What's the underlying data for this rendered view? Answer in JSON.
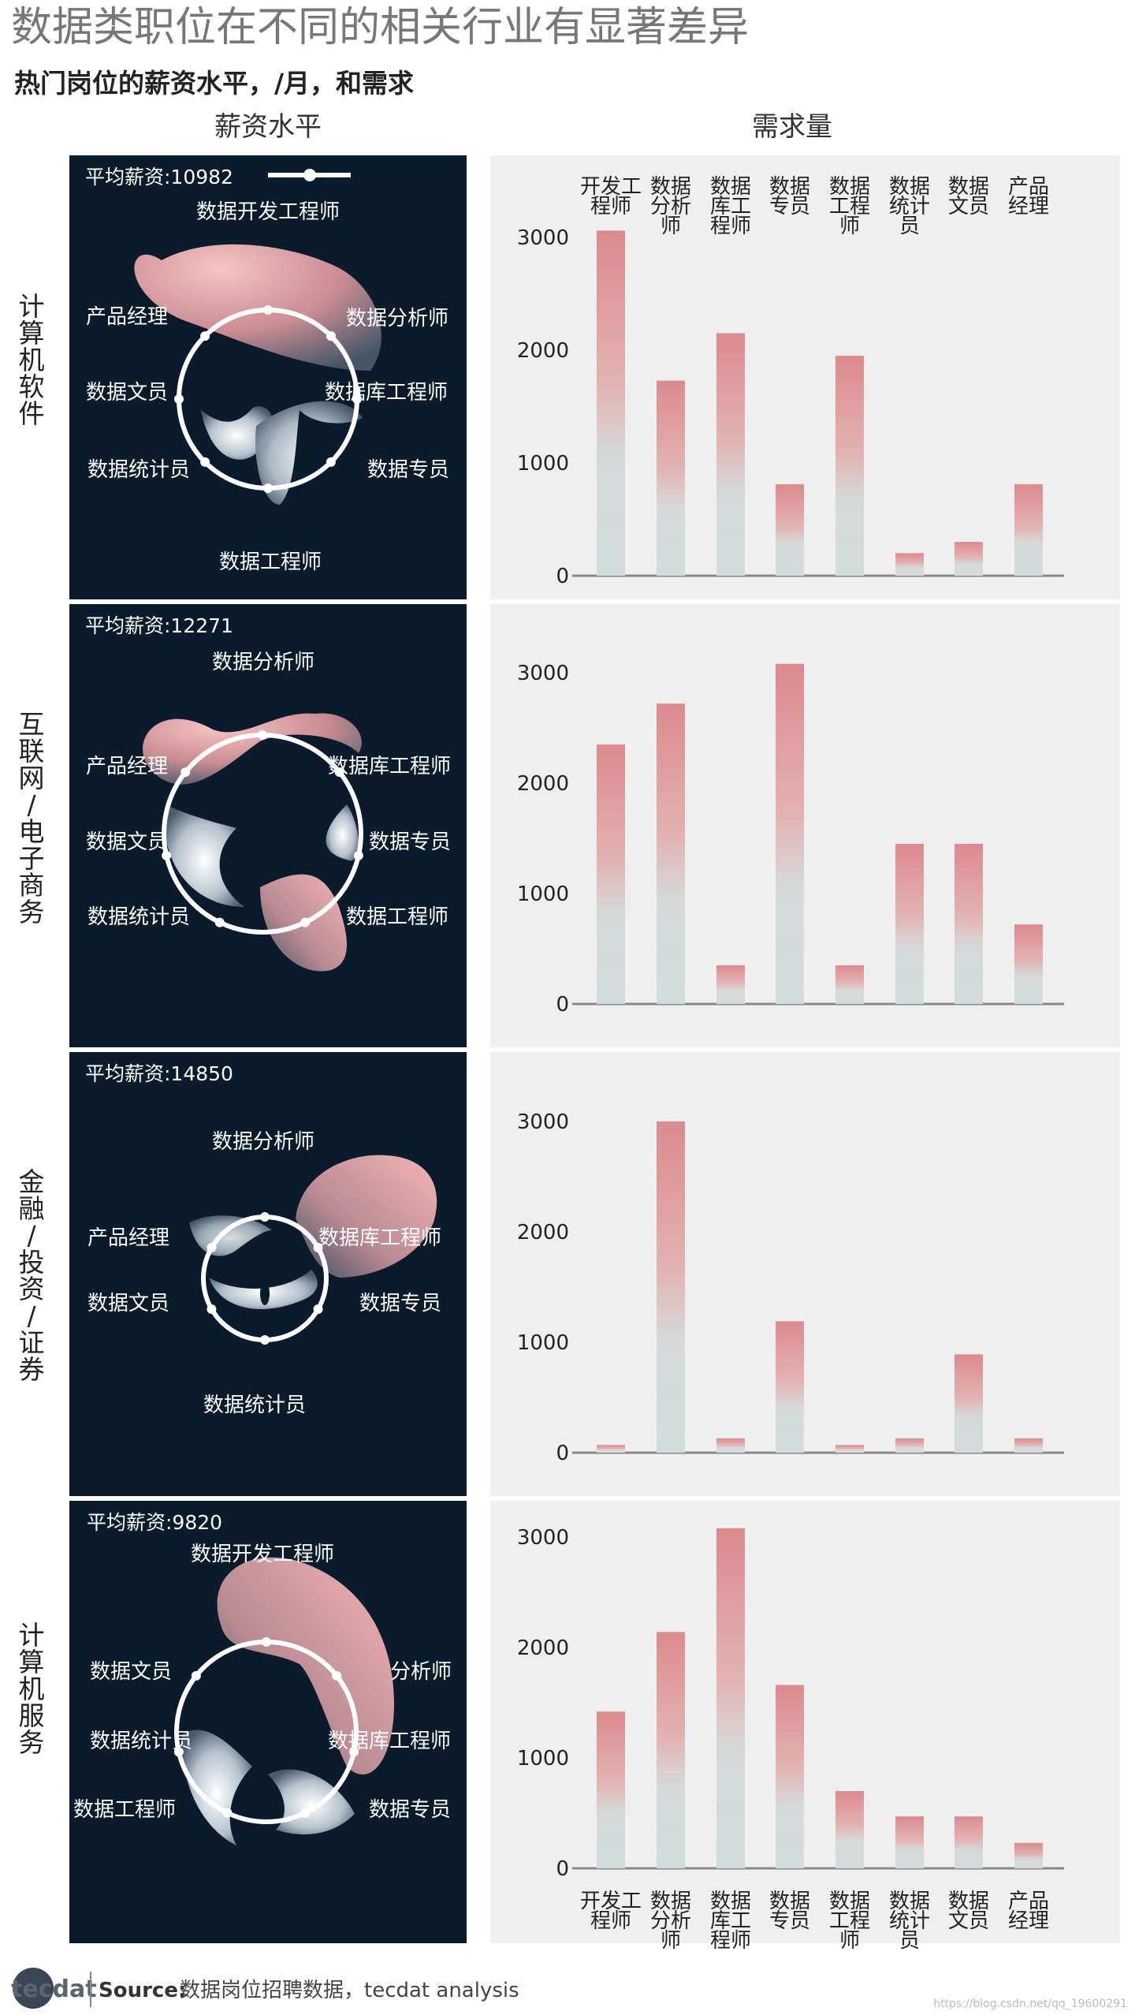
{
  "title": "数据类职位在不同的相关行业有显著差异",
  "subtitle": "热门岗位的薪资水平，/月，和需求",
  "col_headers": {
    "salary": "薪资水平",
    "demand": "需求量"
  },
  "legend_avg_label": "平均薪资",
  "footer": {
    "logo": "tecdat",
    "source_label": "Source:",
    "source_text": "数据岗位招聘数据，tecdat analysis",
    "watermark": "https://blog.csdn.net/qq_19600291"
  },
  "colors": {
    "panel_dark": "#0b1b2b",
    "panel_light": "#efefef",
    "bar_top": "#dc8a8d",
    "bar_bottom": "#d3dcdc",
    "blob_pink": "#f2b2b4",
    "axis": "#888888"
  },
  "chart_data": [
    {
      "industry": "计算机软件",
      "radar": {
        "type": "radar",
        "avg_salary_label": "平均薪资:10982",
        "labels": [
          "数据开发工程师",
          "数据分析师",
          "数据库工程师",
          "数据专员",
          "数据工程师",
          "数据统计员",
          "数据文员",
          "产品经理"
        ]
      },
      "bar": {
        "type": "bar",
        "categories": [
          "开发工程师",
          "数据分析师",
          "数据库工程师",
          "数据专员",
          "数据工程师",
          "数据统计员",
          "数据文员",
          "产品经理"
        ],
        "category_labels": [
          "开发工\n程师",
          "数据\n分析\n师",
          "数据\n库工\n程师",
          "数据\n专员",
          "数据\n工程\n师",
          "数据\n统计\n员",
          "数据\n文员",
          "产品\n经理"
        ],
        "values": [
          3060,
          1730,
          2150,
          810,
          1950,
          200,
          300,
          810
        ],
        "yticks": [
          0,
          1000,
          2000,
          3000
        ],
        "ylim": [
          0,
          3300
        ],
        "category_labels_position": "top"
      }
    },
    {
      "industry": "互联网/电子商务",
      "radar": {
        "type": "radar",
        "avg_salary_label": "平均薪资:12271",
        "labels": [
          "数据分析师",
          "数据库工程师",
          "数据专员",
          "数据工程师",
          "数据统计员",
          "数据文员",
          "产品经理"
        ]
      },
      "bar": {
        "type": "bar",
        "categories": [
          "开发工程师",
          "数据分析师",
          "数据库工程师",
          "数据专员",
          "数据工程师",
          "数据统计员",
          "数据文员",
          "产品经理"
        ],
        "values": [
          2350,
          2720,
          350,
          3080,
          350,
          1450,
          1450,
          720
        ],
        "yticks": [
          0,
          1000,
          2000,
          3000
        ],
        "ylim": [
          0,
          3300
        ]
      }
    },
    {
      "industry": "金融/投资/证券",
      "radar": {
        "type": "radar",
        "avg_salary_label": "平均薪资:14850",
        "labels": [
          "数据分析师",
          "数据库工程师",
          "数据专员",
          "数据统计员",
          "数据文员",
          "产品经理"
        ]
      },
      "bar": {
        "type": "bar",
        "categories": [
          "开发工程师",
          "数据分析师",
          "数据库工程师",
          "数据专员",
          "数据工程师",
          "数据统计员",
          "数据文员",
          "产品经理"
        ],
        "values": [
          70,
          3000,
          130,
          1190,
          70,
          130,
          890,
          130
        ],
        "yticks": [
          0,
          1000,
          2000,
          3000
        ],
        "ylim": [
          0,
          3300
        ]
      }
    },
    {
      "industry": "计算机服务",
      "radar": {
        "type": "radar",
        "avg_salary_label": "平均薪资:9820",
        "labels": [
          "数据开发工程师",
          "分析师",
          "数据库工程师",
          "数据专员",
          "数据工程师",
          "数据统计员",
          "数据文员"
        ]
      },
      "bar": {
        "type": "bar",
        "categories": [
          "开发工程师",
          "数据分析师",
          "数据库工程师",
          "数据专员",
          "数据工程师",
          "数据统计员",
          "数据文员",
          "产品经理"
        ],
        "category_labels": [
          "开发工\n程师",
          "数据\n分析\n师",
          "数据\n库工\n程师",
          "数据\n专员",
          "数据\n工程\n师",
          "数据\n统计\n员",
          "数据\n文员",
          "产品\n经理"
        ],
        "values": [
          1420,
          2140,
          3080,
          1660,
          700,
          470,
          470,
          230
        ],
        "yticks": [
          0,
          1000,
          2000,
          3000
        ],
        "ylim": [
          0,
          3300
        ],
        "category_labels_position": "bottom"
      }
    }
  ]
}
